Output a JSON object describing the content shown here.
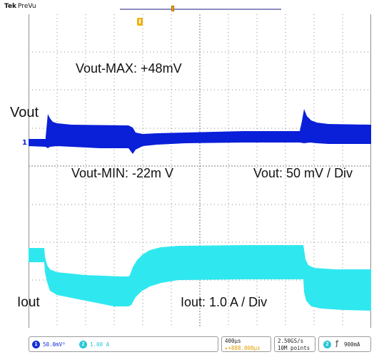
{
  "header": {
    "brand": "Tek",
    "mode": "PreVu"
  },
  "annotations": {
    "vout_max": "Vout-MAX: +48mV",
    "vout_min": "Vout-MIN: -22m V",
    "vout_scale": "Vout: 50 mV / Div",
    "vout_label": "Vout",
    "iout_label": "Iout",
    "iout_scale": "Iout: 1.0 A / Div"
  },
  "channel1_marker": "1",
  "status": {
    "ch1_number": "1",
    "ch1_scale": "50.0mV⁰",
    "ch2_number": "2",
    "ch2_scale": "1.00 A",
    "timebase": "400µs",
    "time_offset": "▸+888.000µs",
    "sample_rate": "2.50GS/s",
    "record_length": "10M points",
    "trigger_channel": "2",
    "trigger_slope": "ƒ",
    "trigger_level": "900mA"
  },
  "colors": {
    "ch1": "#0a1fd8",
    "ch2": "#2fe8ef",
    "grid": "#9a9a9a",
    "trigger": "#f1b000"
  },
  "icons": {
    "trigger_position": "trigger-position-marker-icon",
    "ch1_ground": "channel-1-ground-marker-icon"
  }
}
